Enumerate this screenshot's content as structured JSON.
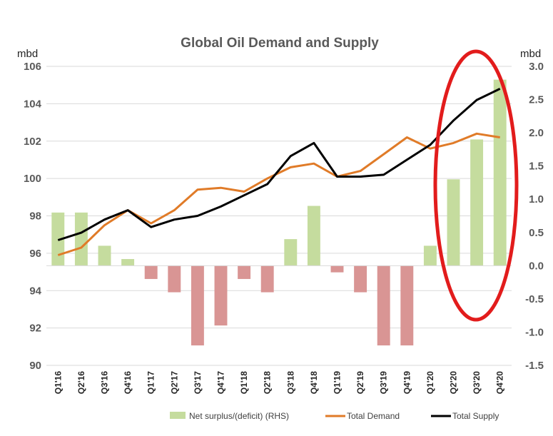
{
  "chart_data": {
    "type": "bar+line",
    "title": "Global Oil Demand and Supply",
    "y_left_unit": "mbd",
    "y_right_unit": "mbd",
    "y_left_range": [
      90,
      106
    ],
    "y_right_range": [
      -1.5,
      3.0
    ],
    "y_left_ticks": [
      "106",
      "104",
      "102",
      "100",
      "98",
      "96",
      "94",
      "92",
      "90"
    ],
    "y_right_ticks": [
      "3.0",
      "2.5",
      "2.0",
      "1.5",
      "1.0",
      "0.5",
      "0.0",
      "-0.5",
      "-1.0",
      "-1.5"
    ],
    "categories": [
      "Q1'16",
      "Q2'16",
      "Q3'16",
      "Q4'16",
      "Q1'17",
      "Q2'17",
      "Q3'17",
      "Q4'17",
      "Q1'18",
      "Q2'18",
      "Q3'18",
      "Q4'18",
      "Q1'19",
      "Q2'19",
      "Q3'19",
      "Q4'19",
      "Q1'20",
      "Q2'20",
      "Q3'20",
      "Q4'20"
    ],
    "series": [
      {
        "name": "Net surplus/(deficit) (RHS)",
        "kind": "bar",
        "axis": "right",
        "positive_color": "#c5dc9e",
        "negative_color": "#d99594",
        "values": [
          0.8,
          0.8,
          0.3,
          0.1,
          -0.2,
          -0.4,
          -1.2,
          -0.9,
          -0.2,
          -0.4,
          0.4,
          0.9,
          -0.1,
          -0.4,
          -1.2,
          -1.2,
          0.3,
          1.3,
          1.9,
          2.8
        ]
      },
      {
        "name": "Total Demand",
        "kind": "line",
        "axis": "left",
        "color": "#e07b28",
        "values": [
          95.9,
          96.3,
          97.5,
          98.3,
          97.6,
          98.3,
          99.4,
          99.5,
          99.3,
          100.0,
          100.6,
          100.8,
          100.1,
          100.4,
          101.3,
          102.2,
          101.6,
          101.9,
          102.4,
          102.2
        ]
      },
      {
        "name": "Total Supply",
        "kind": "line",
        "axis": "left",
        "color": "#000000",
        "values": [
          96.7,
          97.1,
          97.8,
          98.3,
          97.4,
          97.8,
          98.0,
          98.5,
          99.1,
          99.7,
          101.2,
          101.9,
          100.1,
          100.1,
          100.2,
          101.0,
          101.8,
          103.1,
          104.2,
          104.8
        ]
      }
    ],
    "annotation": "red ellipse highlighting Q2'20-Q4'20",
    "grid": true,
    "legend_position": "bottom"
  }
}
